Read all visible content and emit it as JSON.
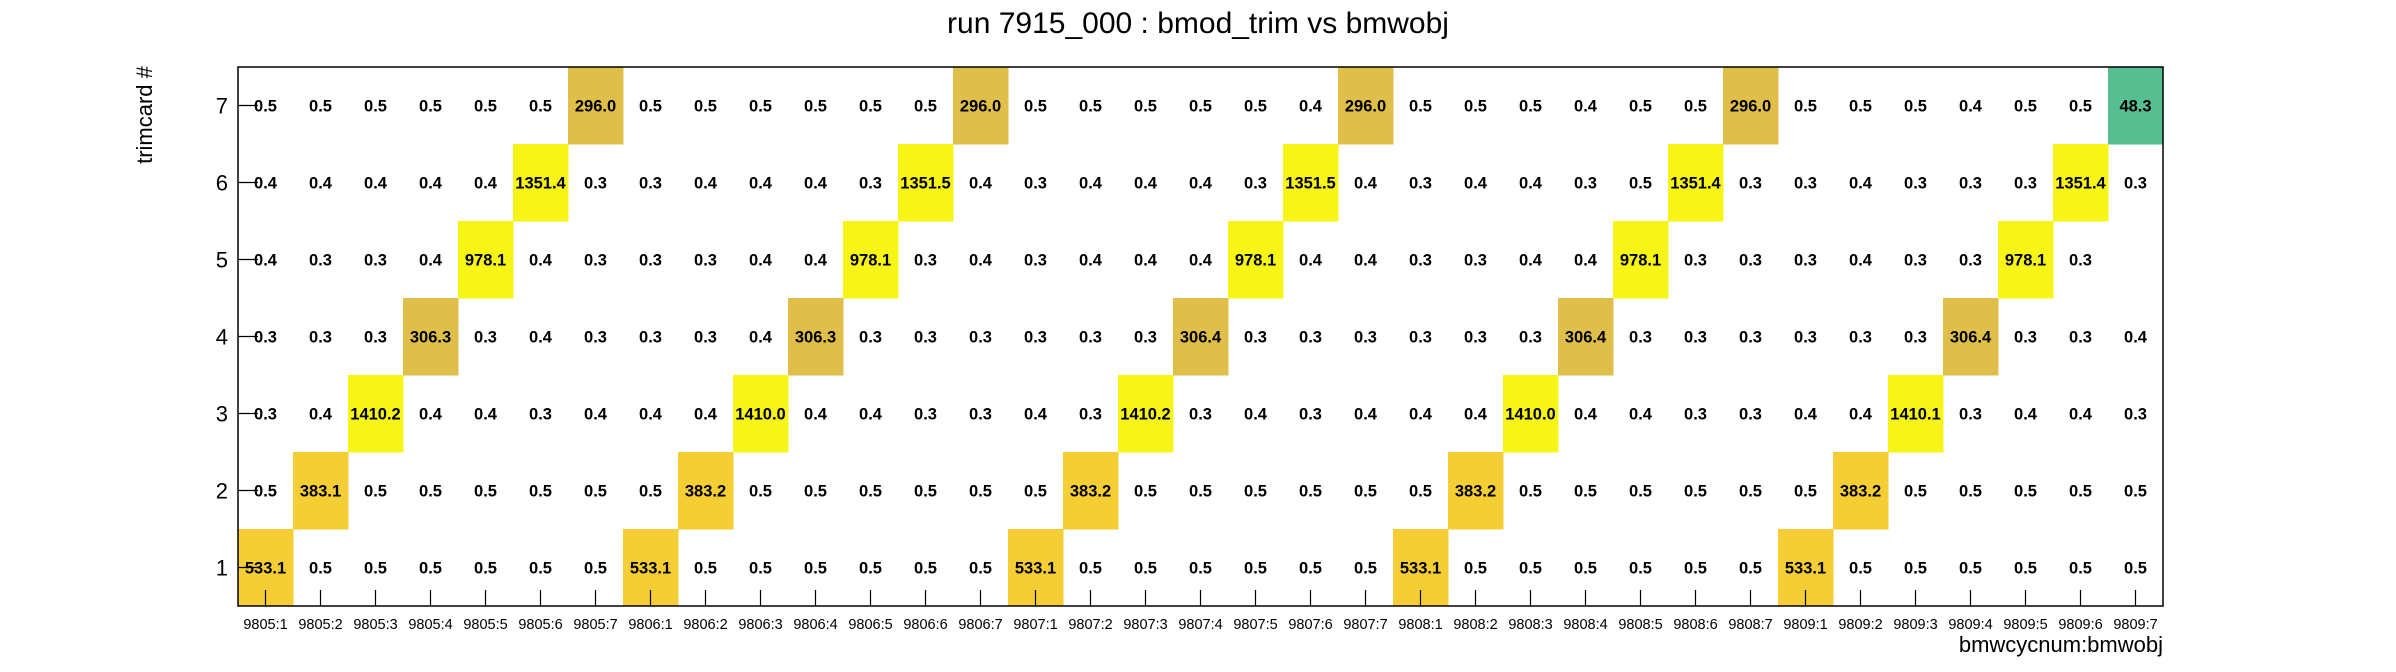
{
  "chart_data": {
    "type": "heatmap",
    "title": "run 7915_000 : bmod_trim vs bmwobj",
    "xlabel": "bmwcycnum:bmwobj",
    "ylabel": "trimcard #",
    "x_categories": [
      "9805:1",
      "9805:2",
      "9805:3",
      "9805:4",
      "9805:5",
      "9805:6",
      "9805:7",
      "9806:1",
      "9806:2",
      "9806:3",
      "9806:4",
      "9806:5",
      "9806:6",
      "9806:7",
      "9807:1",
      "9807:2",
      "9807:3",
      "9807:4",
      "9807:5",
      "9807:6",
      "9807:7",
      "9808:1",
      "9808:2",
      "9808:3",
      "9808:4",
      "9808:5",
      "9808:6",
      "9808:7",
      "9809:1",
      "9809:2",
      "9809:3",
      "9809:4",
      "9809:5",
      "9809:6",
      "9809:7"
    ],
    "y_categories": [
      "1",
      "2",
      "3",
      "4",
      "5",
      "6",
      "7"
    ],
    "rows": [
      {
        "y": "1",
        "values": [
          533.1,
          0.5,
          0.5,
          0.5,
          0.5,
          0.5,
          0.5,
          533.1,
          0.5,
          0.5,
          0.5,
          0.5,
          0.5,
          0.5,
          533.1,
          0.5,
          0.5,
          0.5,
          0.5,
          0.5,
          0.5,
          533.1,
          0.5,
          0.5,
          0.5,
          0.5,
          0.5,
          0.5,
          533.1,
          0.5,
          0.5,
          0.5,
          0.5,
          0.5,
          0.5
        ]
      },
      {
        "y": "2",
        "values": [
          0.5,
          383.1,
          0.5,
          0.5,
          0.5,
          0.5,
          0.5,
          0.5,
          383.2,
          0.5,
          0.5,
          0.5,
          0.5,
          0.5,
          0.5,
          383.2,
          0.5,
          0.5,
          0.5,
          0.5,
          0.5,
          0.5,
          383.2,
          0.5,
          0.5,
          0.5,
          0.5,
          0.5,
          0.5,
          383.2,
          0.5,
          0.5,
          0.5,
          0.5,
          0.5
        ]
      },
      {
        "y": "3",
        "values": [
          0.3,
          0.4,
          1410.2,
          0.4,
          0.4,
          0.3,
          0.4,
          0.4,
          0.4,
          1410.0,
          0.4,
          0.4,
          0.3,
          0.3,
          0.4,
          0.3,
          1410.2,
          0.3,
          0.4,
          0.3,
          0.4,
          0.4,
          0.4,
          1410.0,
          0.4,
          0.4,
          0.3,
          0.3,
          0.4,
          0.4,
          1410.1,
          0.3,
          0.4,
          0.4,
          0.3
        ]
      },
      {
        "y": "4",
        "values": [
          0.3,
          0.3,
          0.3,
          306.3,
          0.3,
          0.4,
          0.3,
          0.3,
          0.3,
          0.4,
          306.3,
          0.3,
          0.3,
          0.3,
          0.3,
          0.3,
          0.3,
          306.4,
          0.3,
          0.3,
          0.3,
          0.3,
          0.3,
          0.3,
          306.4,
          0.3,
          0.3,
          0.3,
          0.3,
          0.3,
          0.3,
          306.4,
          0.3,
          0.3,
          0.4
        ]
      },
      {
        "y": "5",
        "values": [
          0.4,
          0.3,
          0.3,
          0.4,
          978.1,
          0.4,
          0.3,
          0.3,
          0.3,
          0.4,
          0.4,
          978.1,
          0.3,
          0.4,
          0.3,
          0.4,
          0.4,
          0.4,
          978.1,
          0.4,
          0.4,
          0.3,
          0.3,
          0.4,
          0.4,
          978.1,
          0.3,
          0.3,
          0.3,
          0.4,
          0.3,
          0.3,
          978.1,
          0.3,
          null
        ]
      },
      {
        "y": "6",
        "values": [
          0.4,
          0.4,
          0.4,
          0.4,
          0.4,
          1351.4,
          0.3,
          0.3,
          0.4,
          0.4,
          0.4,
          0.3,
          1351.5,
          0.4,
          0.3,
          0.4,
          0.4,
          0.4,
          0.3,
          1351.5,
          0.4,
          0.3,
          0.4,
          0.4,
          0.3,
          0.5,
          1351.4,
          0.3,
          0.3,
          0.4,
          0.3,
          0.3,
          0.3,
          1351.4,
          0.3
        ]
      },
      {
        "y": "7",
        "values": [
          0.5,
          0.5,
          0.5,
          0.5,
          0.5,
          0.5,
          296.0,
          0.5,
          0.5,
          0.5,
          0.5,
          0.5,
          0.5,
          296.0,
          0.5,
          0.5,
          0.5,
          0.5,
          0.5,
          0.4,
          296.0,
          0.5,
          0.5,
          0.5,
          0.4,
          0.5,
          0.5,
          296.0,
          0.5,
          0.5,
          0.5,
          0.4,
          0.5,
          0.5,
          48.3
        ]
      }
    ],
    "colors": {
      "yellow": "#f7f518",
      "gold": "#f5cd34",
      "tan": "#e0be4a",
      "green": "#57be92",
      "frame": "#000000"
    },
    "grid": false,
    "legend": "none"
  }
}
